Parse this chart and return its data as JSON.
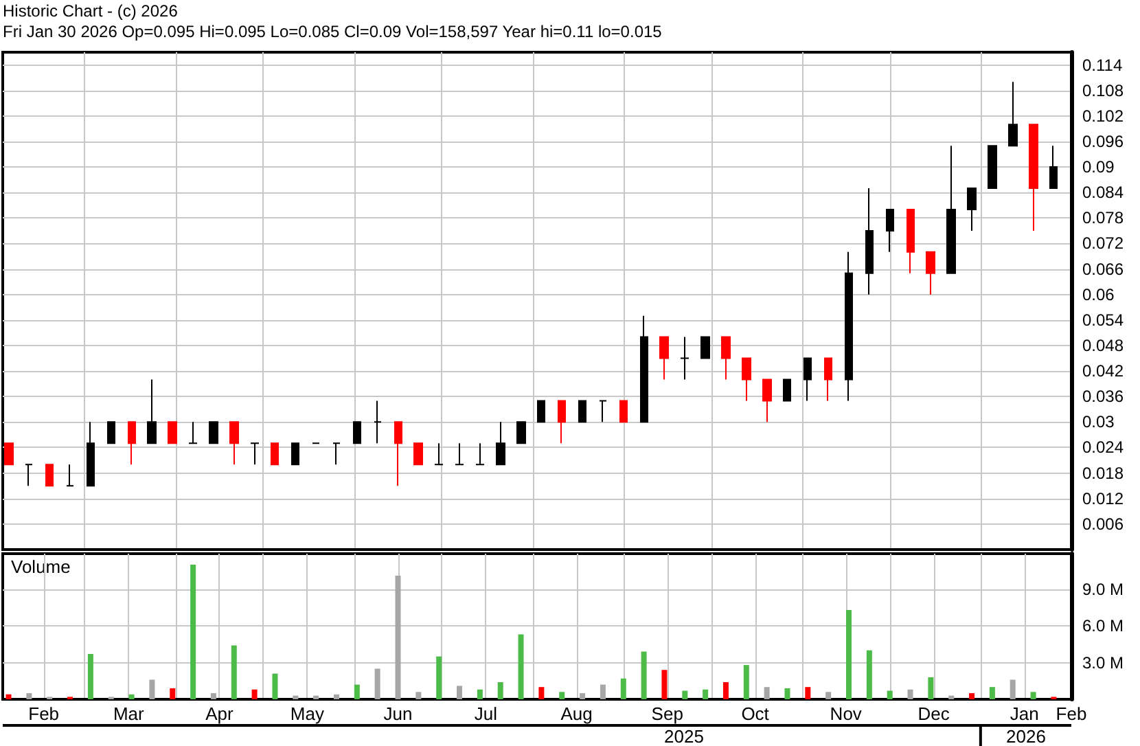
{
  "chart_data": [
    {
      "type": "candlestick",
      "title": "Historic Chart - (c) 2026",
      "subtitle": "Fri Jan 30 2026 Op=0.095 Hi=0.095 Lo=0.085 Cl=0.09 Vol=158,597 Year hi=0.11 lo=0.015",
      "colors": [
        "#ff0000",
        "#000000",
        "#ff0000",
        "#000000",
        "#000000",
        "#000000",
        "#ff0000",
        "#000000",
        "#ff0000",
        "#000000",
        "#000000",
        "#ff0000",
        "#000000",
        "#ff0000",
        "#000000",
        "#000000",
        "#000000",
        "#000000",
        "#000000",
        "#ff0000",
        "#ff0000",
        "#000000",
        "#000000",
        "#000000",
        "#000000",
        "#000000",
        "#000000",
        "#ff0000",
        "#000000",
        "#000000",
        "#ff0000",
        "#000000",
        "#ff0000",
        "#000000",
        "#000000",
        "#ff0000",
        "#ff0000",
        "#ff0000",
        "#000000",
        "#000000",
        "#ff0000",
        "#000000",
        "#000000",
        "#000000",
        "#ff0000",
        "#ff0000",
        "#000000",
        "#000000",
        "#000000",
        "#000000",
        "#ff0000",
        "#000000"
      ],
      "x": [
        "2025-02-03",
        "2025-02-10",
        "2025-02-17",
        "2025-02-24",
        "2025-03-03",
        "2025-03-10",
        "2025-03-17",
        "2025-03-24",
        "2025-03-31",
        "2025-04-07",
        "2025-04-14",
        "2025-04-21",
        "2025-04-28",
        "2025-05-05",
        "2025-05-12",
        "2025-05-19",
        "2025-05-26",
        "2025-06-02",
        "2025-06-09",
        "2025-06-16",
        "2025-06-23",
        "2025-06-30",
        "2025-07-07",
        "2025-07-14",
        "2025-07-21",
        "2025-07-28",
        "2025-08-04",
        "2025-08-11",
        "2025-08-18",
        "2025-08-25",
        "2025-09-01",
        "2025-09-08",
        "2025-09-15",
        "2025-09-22",
        "2025-09-29",
        "2025-10-06",
        "2025-10-13",
        "2025-10-20",
        "2025-10-27",
        "2025-11-03",
        "2025-11-10",
        "2025-11-17",
        "2025-11-24",
        "2025-12-01",
        "2025-12-08",
        "2025-12-15",
        "2025-12-22",
        "2025-12-29",
        "2026-01-05",
        "2026-01-12",
        "2026-01-19",
        "2026-01-26"
      ],
      "ohlc": [
        [
          0.025,
          0.025,
          0.02,
          0.02
        ],
        [
          0.02,
          0.02,
          0.015,
          0.02
        ],
        [
          0.02,
          0.02,
          0.015,
          0.015
        ],
        [
          0.015,
          0.02,
          0.015,
          0.015
        ],
        [
          0.015,
          0.03,
          0.015,
          0.025
        ],
        [
          0.025,
          0.03,
          0.025,
          0.03
        ],
        [
          0.03,
          0.03,
          0.02,
          0.025
        ],
        [
          0.025,
          0.04,
          0.025,
          0.03
        ],
        [
          0.03,
          0.03,
          0.025,
          0.025
        ],
        [
          0.025,
          0.03,
          0.025,
          0.025
        ],
        [
          0.025,
          0.03,
          0.025,
          0.03
        ],
        [
          0.03,
          0.03,
          0.02,
          0.025
        ],
        [
          0.025,
          0.025,
          0.02,
          0.025
        ],
        [
          0.025,
          0.025,
          0.02,
          0.02
        ],
        [
          0.02,
          0.025,
          0.02,
          0.025
        ],
        [
          0.025,
          0.025,
          0.025,
          0.025
        ],
        [
          0.025,
          0.025,
          0.02,
          0.025
        ],
        [
          0.025,
          0.03,
          0.025,
          0.03
        ],
        [
          0.03,
          0.035,
          0.025,
          0.03
        ],
        [
          0.03,
          0.03,
          0.015,
          0.025
        ],
        [
          0.025,
          0.025,
          0.02,
          0.02
        ],
        [
          0.02,
          0.025,
          0.02,
          0.02
        ],
        [
          0.02,
          0.025,
          0.02,
          0.02
        ],
        [
          0.02,
          0.025,
          0.02,
          0.02
        ],
        [
          0.02,
          0.03,
          0.02,
          0.025
        ],
        [
          0.025,
          0.03,
          0.025,
          0.03
        ],
        [
          0.03,
          0.035,
          0.03,
          0.035
        ],
        [
          0.035,
          0.035,
          0.025,
          0.03
        ],
        [
          0.03,
          0.035,
          0.03,
          0.035
        ],
        [
          0.035,
          0.035,
          0.03,
          0.035
        ],
        [
          0.035,
          0.035,
          0.03,
          0.03
        ],
        [
          0.03,
          0.055,
          0.03,
          0.05
        ],
        [
          0.05,
          0.05,
          0.04,
          0.045
        ],
        [
          0.045,
          0.05,
          0.04,
          0.045
        ],
        [
          0.045,
          0.05,
          0.045,
          0.05
        ],
        [
          0.05,
          0.05,
          0.04,
          0.045
        ],
        [
          0.045,
          0.045,
          0.035,
          0.04
        ],
        [
          0.04,
          0.04,
          0.03,
          0.035
        ],
        [
          0.035,
          0.04,
          0.035,
          0.04
        ],
        [
          0.04,
          0.045,
          0.035,
          0.045
        ],
        [
          0.045,
          0.045,
          0.035,
          0.04
        ],
        [
          0.04,
          0.07,
          0.035,
          0.065
        ],
        [
          0.065,
          0.085,
          0.06,
          0.075
        ],
        [
          0.075,
          0.08,
          0.07,
          0.08
        ],
        [
          0.08,
          0.08,
          0.065,
          0.07
        ],
        [
          0.07,
          0.07,
          0.06,
          0.065
        ],
        [
          0.065,
          0.095,
          0.065,
          0.08
        ],
        [
          0.08,
          0.085,
          0.075,
          0.085
        ],
        [
          0.085,
          0.095,
          0.085,
          0.095
        ],
        [
          0.095,
          0.11,
          0.095,
          0.1
        ],
        [
          0.1,
          0.1,
          0.075,
          0.085
        ],
        [
          0.085,
          0.095,
          0.085,
          0.09
        ]
      ],
      "xlim": [
        "2025-02-01",
        "2026-02-01"
      ],
      "xticks": [
        {
          "value": "2025-03-01",
          "label": null
        },
        {
          "value": "2025-04-01",
          "label": null
        },
        {
          "value": "2025-05-01",
          "label": null
        },
        {
          "value": "2025-06-01",
          "label": null
        },
        {
          "value": "2025-07-01",
          "label": null
        },
        {
          "value": "2025-08-01",
          "label": null
        },
        {
          "value": "2025-09-01",
          "label": null
        },
        {
          "value": "2025-10-01",
          "label": null
        },
        {
          "value": "2025-11-01",
          "label": null
        },
        {
          "value": "2025-12-01",
          "label": null
        },
        {
          "value": "2026-01-01",
          "label": null
        },
        {
          "value": "2026-02-01",
          "label": null
        }
      ],
      "ylim": [
        0,
        0.117
      ],
      "yticks": [
        0.006,
        0.012,
        0.018,
        0.024,
        0.03,
        0.036,
        0.042,
        0.048,
        0.054,
        0.06,
        0.066,
        0.072,
        0.078,
        0.084,
        0.09,
        0.096,
        0.102,
        0.108,
        0.114
      ],
      "grid": true,
      "tick_labels": "y"
    },
    {
      "type": "bar",
      "ylabel": "Volume",
      "x": [
        "2025-02-03",
        "2025-02-10",
        "2025-02-17",
        "2025-02-24",
        "2025-03-03",
        "2025-03-10",
        "2025-03-17",
        "2025-03-24",
        "2025-03-31",
        "2025-04-07",
        "2025-04-14",
        "2025-04-21",
        "2025-04-28",
        "2025-05-05",
        "2025-05-12",
        "2025-05-19",
        "2025-05-26",
        "2025-06-02",
        "2025-06-09",
        "2025-06-16",
        "2025-06-23",
        "2025-06-30",
        "2025-07-07",
        "2025-07-14",
        "2025-07-21",
        "2025-07-28",
        "2025-08-04",
        "2025-08-11",
        "2025-08-18",
        "2025-08-25",
        "2025-09-01",
        "2025-09-08",
        "2025-09-15",
        "2025-09-22",
        "2025-09-29",
        "2025-10-06",
        "2025-10-13",
        "2025-10-20",
        "2025-10-27",
        "2025-11-03",
        "2025-11-10",
        "2025-11-17",
        "2025-11-24",
        "2025-12-01",
        "2025-12-08",
        "2025-12-15",
        "2025-12-22",
        "2025-12-29",
        "2026-01-05",
        "2026-01-12",
        "2026-01-19",
        "2026-01-26"
      ],
      "values": [
        0.4,
        0.5,
        0.2,
        0.2,
        3.7,
        0.2,
        0.4,
        1.6,
        0.9,
        11,
        0.5,
        4.4,
        0.8,
        2.1,
        0.3,
        0.3,
        0.4,
        1.2,
        2.5,
        10.1,
        0.6,
        3.5,
        1.1,
        0.8,
        1.4,
        5.3,
        1.0,
        0.6,
        0.5,
        1.2,
        1.7,
        3.9,
        2.4,
        0.7,
        0.8,
        1.4,
        2.8,
        1.0,
        0.9,
        1.0,
        0.6,
        7.3,
        4.0,
        0.7,
        0.8,
        1.8,
        0.3,
        0.5,
        1.0,
        1.6,
        0.6,
        0.2
      ],
      "colors": [
        "#ff0000",
        "#a6a6a6",
        "#a6a6a6",
        "#ff0000",
        "#4cbb47",
        "#a6a6a6",
        "#4cbb47",
        "#a6a6a6",
        "#ff0000",
        "#4cbb47",
        "#a6a6a6",
        "#4cbb47",
        "#ff0000",
        "#4cbb47",
        "#a6a6a6",
        "#a6a6a6",
        "#a6a6a6",
        "#4cbb47",
        "#a6a6a6",
        "#a6a6a6",
        "#a6a6a6",
        "#4cbb47",
        "#a6a6a6",
        "#4cbb47",
        "#4cbb47",
        "#4cbb47",
        "#ff0000",
        "#4cbb47",
        "#a6a6a6",
        "#a6a6a6",
        "#4cbb47",
        "#4cbb47",
        "#ff0000",
        "#4cbb47",
        "#4cbb47",
        "#ff0000",
        "#4cbb47",
        "#a6a6a6",
        "#4cbb47",
        "#ff0000",
        "#a6a6a6",
        "#4cbb47",
        "#4cbb47",
        "#4cbb47",
        "#a6a6a6",
        "#4cbb47",
        "#a6a6a6",
        "#ff0000",
        "#4cbb47",
        "#a6a6a6",
        "#4cbb47",
        "#ff0000"
      ],
      "xlim": [
        "2025-02-01",
        "2026-02-01"
      ],
      "xticks": [
        {
          "value": "2025-02-15",
          "label": "Feb"
        },
        {
          "value": "2025-03-01",
          "label": null
        },
        {
          "value": "2025-03-16",
          "label": "Mar"
        },
        {
          "value": "2025-04-01",
          "label": null
        },
        {
          "value": "2025-04-16",
          "label": "Apr"
        },
        {
          "value": "2025-05-01",
          "label": null
        },
        {
          "value": "2025-05-16",
          "label": "May"
        },
        {
          "value": "2025-06-01",
          "label": null
        },
        {
          "value": "2025-06-16",
          "label": "Jun"
        },
        {
          "value": "2025-07-01",
          "label": null
        },
        {
          "value": "2025-07-16",
          "label": "Jul"
        },
        {
          "value": "2025-08-01",
          "label": null
        },
        {
          "value": "2025-08-16",
          "label": "Aug"
        },
        {
          "value": "2025-09-01",
          "label": null
        },
        {
          "value": "2025-09-16",
          "label": "Sep"
        },
        {
          "value": "2025-10-01",
          "label": null
        },
        {
          "value": "2025-10-16",
          "label": "Oct"
        },
        {
          "value": "2025-11-01",
          "label": null
        },
        {
          "value": "2025-11-16",
          "label": "Nov"
        },
        {
          "value": "2025-12-01",
          "label": null
        },
        {
          "value": "2025-12-16",
          "label": "Dec"
        },
        {
          "value": "2026-01-01",
          "label": null
        },
        {
          "value": "2026-01-16",
          "label": "Jan"
        },
        {
          "value": "2026-02-01",
          "label": "Feb"
        }
      ],
      "ylim": [
        0,
        11.9
      ],
      "yticks": [
        {
          "value": 3,
          "label": "3.0 M"
        },
        {
          "value": 6,
          "label": "6.0 M"
        },
        {
          "value": 9,
          "label": "9.0 M"
        }
      ],
      "grid": true,
      "annotations": [
        "2025",
        "2026"
      ]
    }
  ]
}
